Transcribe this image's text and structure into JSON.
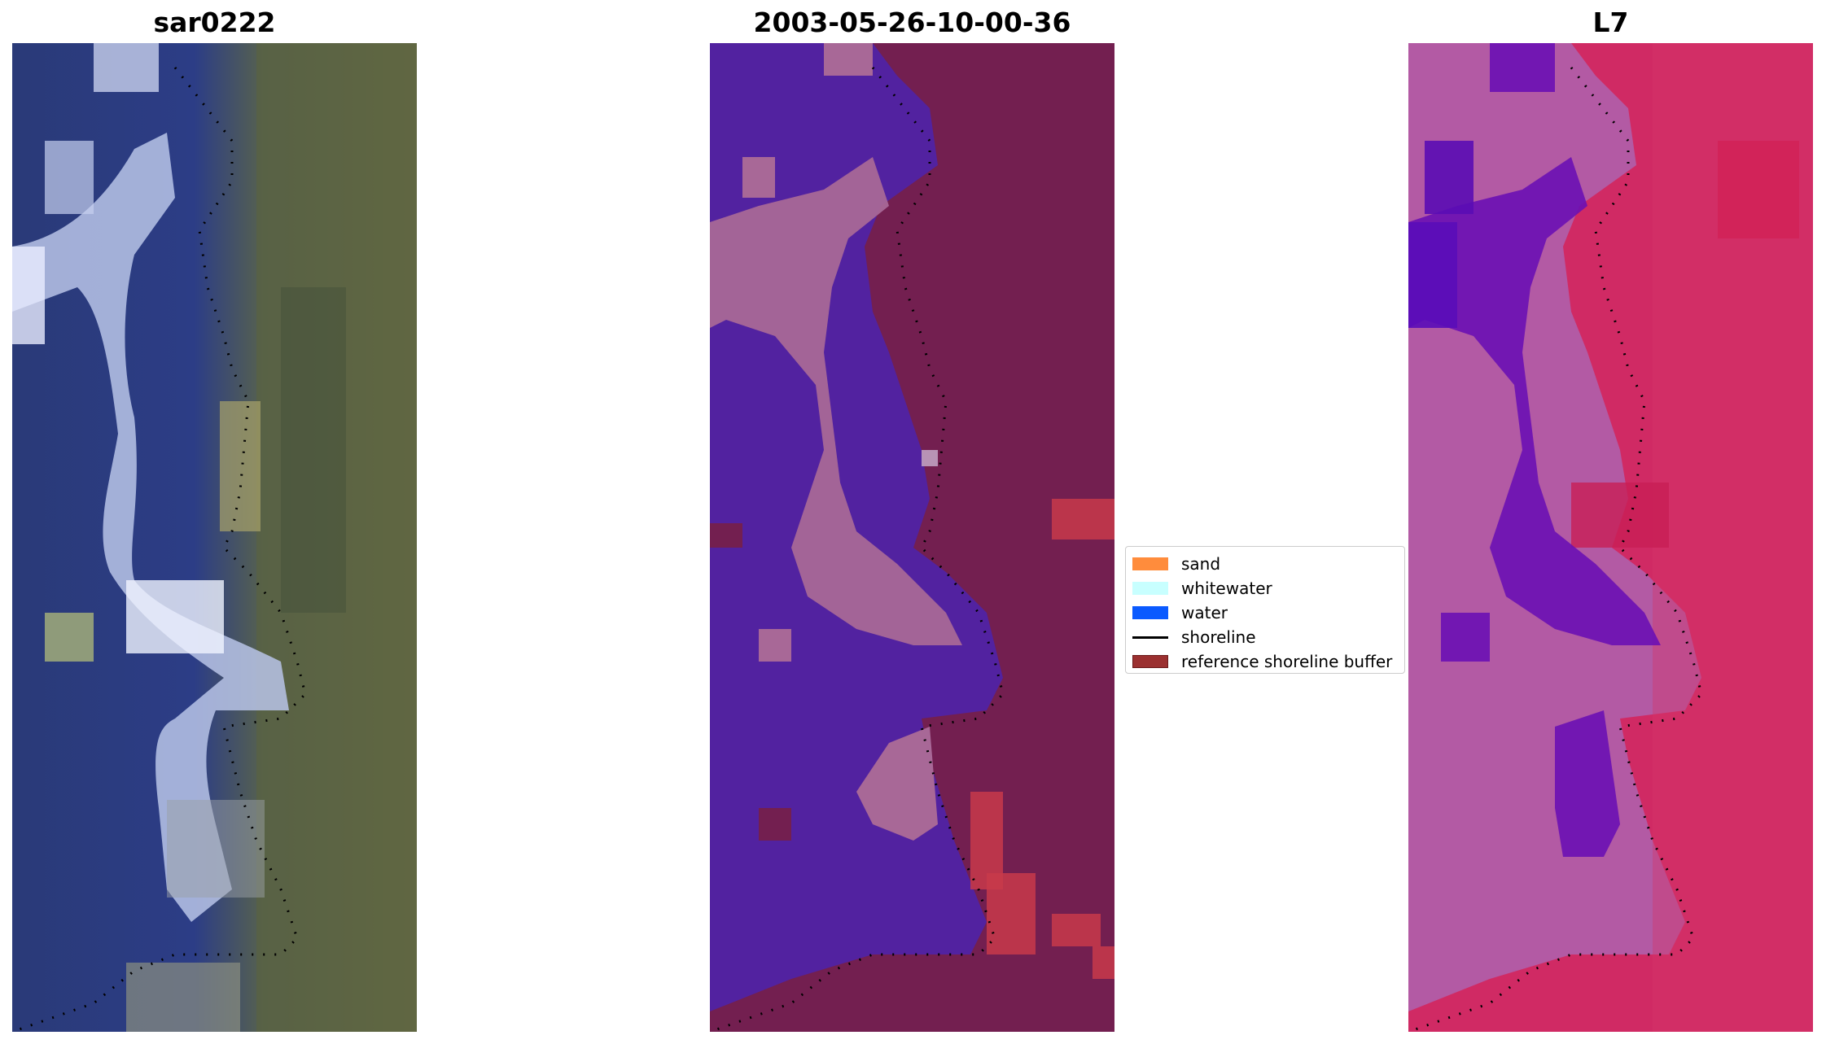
{
  "panels": [
    {
      "id": "rgb",
      "title": "sar0222"
    },
    {
      "id": "classified",
      "title": "2003-05-26-10-00-36"
    },
    {
      "id": "index",
      "title": "L7"
    }
  ],
  "legend": {
    "items": [
      {
        "label": "sand",
        "color": "#ff8c3c",
        "kind": "patch"
      },
      {
        "label": "whitewater",
        "color": "#c8ffff",
        "kind": "patch"
      },
      {
        "label": "water",
        "color": "#0a5aff",
        "kind": "patch"
      },
      {
        "label": "shoreline",
        "color": "#000000",
        "kind": "line"
      },
      {
        "label": "reference shoreline buffer",
        "color": "#9b3030",
        "kind": "patch"
      }
    ]
  },
  "colors": {
    "classified_water": "#5222a0",
    "classified_buffer": "#731f50",
    "classified_buffer_light": "#a86897",
    "index_land": "#d02a64",
    "index_low": "#b35aa4",
    "index_water": "#6a10b4"
  }
}
